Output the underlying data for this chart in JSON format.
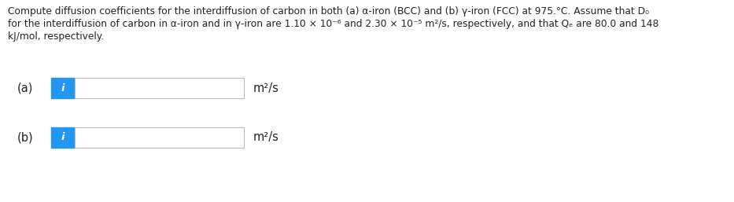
{
  "line1": "Compute diffusion coefficients for the interdiffusion of carbon in both (a) α-iron (BCC) and (b) γ-iron (FCC) at 975.°C. Assume that D₀",
  "line2": "for the interdiffusion of carbon in α-iron and in γ-iron are 1.10 × 10⁻⁶ and 2.30 × 10⁻⁵ m²/s, respectively, and that Qₑ are 80.0 and 148",
  "line3": "kJ/mol, respectively.",
  "label_a": "(a)",
  "label_b": "(b)",
  "unit": "m²/s",
  "icon_color": "#2196F3",
  "icon_text": "i",
  "box_edge_color": "#bbbbbb",
  "box_fill_color": "#ffffff",
  "background_color": "#ffffff",
  "text_color": "#222222",
  "font_size_body": 8.8,
  "font_size_label": 10.5,
  "font_size_unit": 10.5,
  "font_size_icon": 9.5
}
